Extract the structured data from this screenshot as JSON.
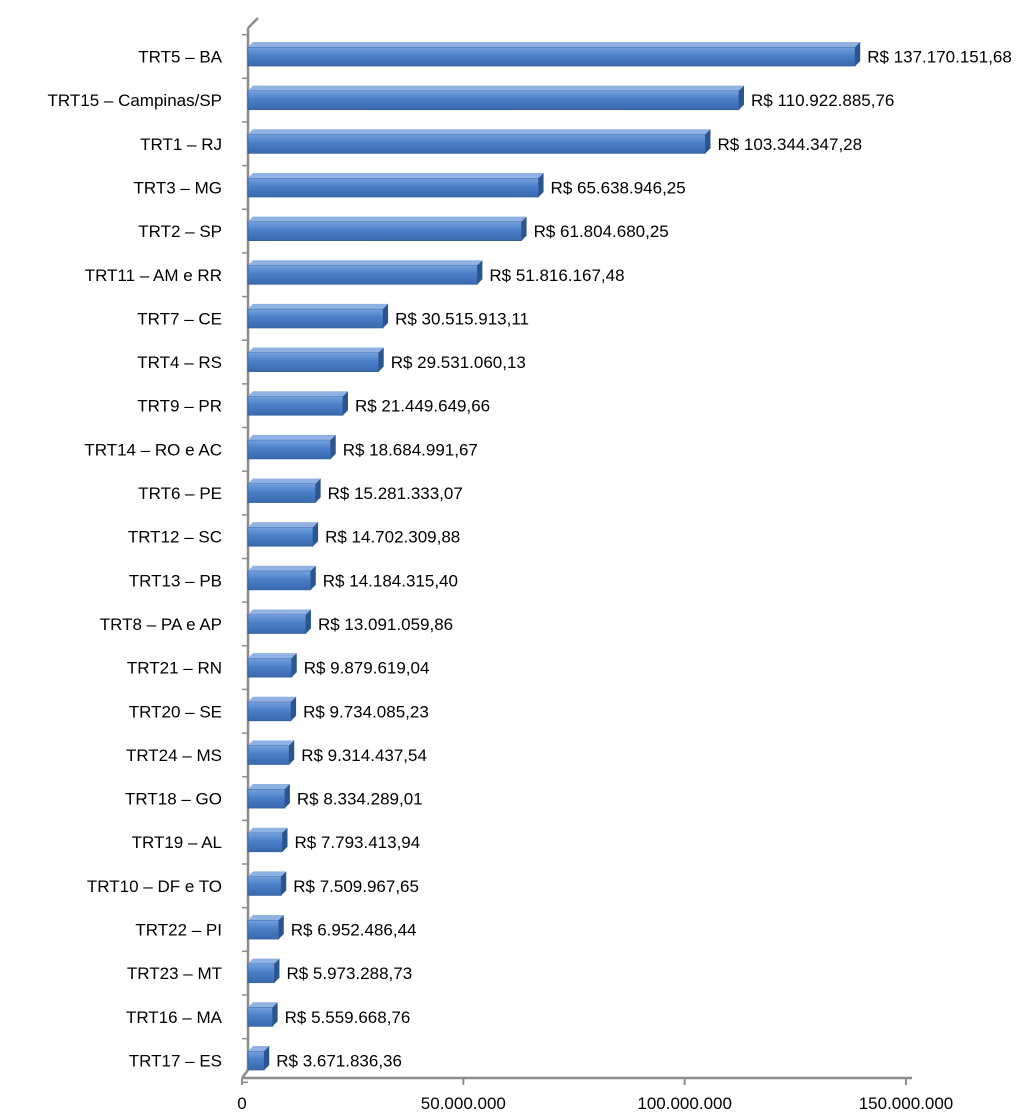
{
  "chart_data": {
    "type": "bar",
    "orientation": "horizontal",
    "categories": [
      "TRT5 – BA",
      "TRT15 – Campinas/SP",
      "TRT1 – RJ",
      "TRT3 – MG",
      "TRT2 – SP",
      "TRT11 – AM e RR",
      "TRT7 – CE",
      "TRT4 – RS",
      "TRT9 – PR",
      "TRT14 – RO e AC",
      "TRT6 – PE",
      "TRT12 – SC",
      "TRT13 – PB",
      "TRT8 – PA e AP",
      "TRT21 – RN",
      "TRT20 – SE",
      "TRT24 – MS",
      "TRT18 – GO",
      "TRT19 – AL",
      "TRT10 – DF e TO",
      "TRT22 – PI",
      "TRT23 – MT",
      "TRT16 – MA",
      "TRT17 – ES"
    ],
    "values": [
      137170151.68,
      110922885.76,
      103344347.28,
      65638946.25,
      61804680.25,
      51816167.48,
      30515913.11,
      29531060.13,
      21449649.66,
      18684991.67,
      15281333.07,
      14702309.88,
      14184315.4,
      13091059.86,
      9879619.04,
      9734085.23,
      9314437.54,
      8334289.01,
      7793413.94,
      7509967.65,
      6952486.44,
      5973288.73,
      5559668.76,
      3671836.36
    ],
    "value_labels": [
      "R$ 137.170.151,68",
      "R$ 110.922.885,76",
      "R$ 103.344.347,28",
      "R$ 65.638.946,25",
      "R$ 61.804.680,25",
      "R$ 51.816.167,48",
      "R$ 30.515.913,11",
      "R$ 29.531.060,13",
      "R$ 21.449.649,66",
      "R$ 18.684.991,67",
      "R$ 15.281.333,07",
      "R$ 14.702.309,88",
      "R$ 14.184.315,40",
      "R$ 13.091.059,86",
      "R$ 9.879.619,04",
      "R$ 9.734.085,23",
      "R$ 9.314.437,54",
      "R$ 8.334.289,01",
      "R$ 7.793.413,94",
      "R$ 7.509.967,65",
      "R$ 6.952.486,44",
      "R$ 5.973.288,73",
      "R$ 5.559.668,76",
      "R$ 3.671.836,36"
    ],
    "x_ticks": [
      0,
      50000000,
      100000000,
      150000000
    ],
    "x_tick_labels": [
      "0",
      "50.000.000",
      "100.000.000",
      "150.000.000"
    ],
    "xlim": [
      0,
      150000000
    ],
    "title": "",
    "xlabel": "",
    "ylabel": "",
    "grid": false,
    "legend": "none",
    "style": "3d",
    "colors": {
      "bar_front": "#4a7fc8",
      "bar_top": "#8fb2e3",
      "bar_side": "#2c548e",
      "axis": "#8c8c8c",
      "text": "#000000"
    }
  }
}
